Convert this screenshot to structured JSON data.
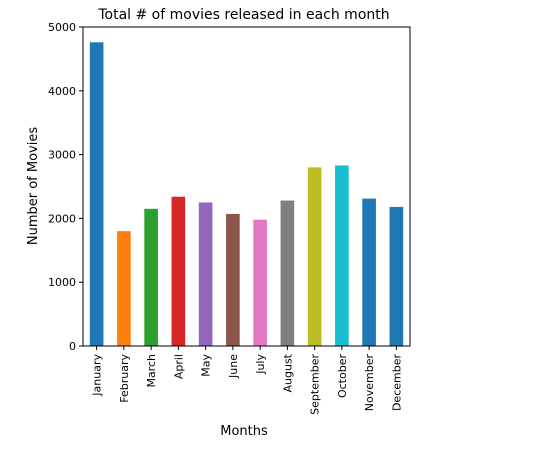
{
  "chart_data": {
    "type": "bar",
    "title": "Total # of movies released in each month",
    "xlabel": "Months",
    "ylabel": "Number of Movies",
    "categories": [
      "January",
      "February",
      "March",
      "April",
      "May",
      "June",
      "July",
      "August",
      "September",
      "October",
      "November",
      "December"
    ],
    "values": [
      4760,
      1800,
      2150,
      2340,
      2250,
      2070,
      1980,
      2280,
      2800,
      2830,
      2310,
      2180
    ],
    "colors": [
      "#1f77b4",
      "#ff7f0e",
      "#2ca02c",
      "#d62728",
      "#9467bd",
      "#8c564b",
      "#e377c2",
      "#7f7f7f",
      "#bcbd22",
      "#17becf",
      "#1f77b4",
      "#1f77b4"
    ],
    "ylim": [
      0,
      5000
    ],
    "yticks": [
      0,
      1000,
      2000,
      3000,
      4000,
      5000
    ],
    "grid": false,
    "legend": false
  }
}
